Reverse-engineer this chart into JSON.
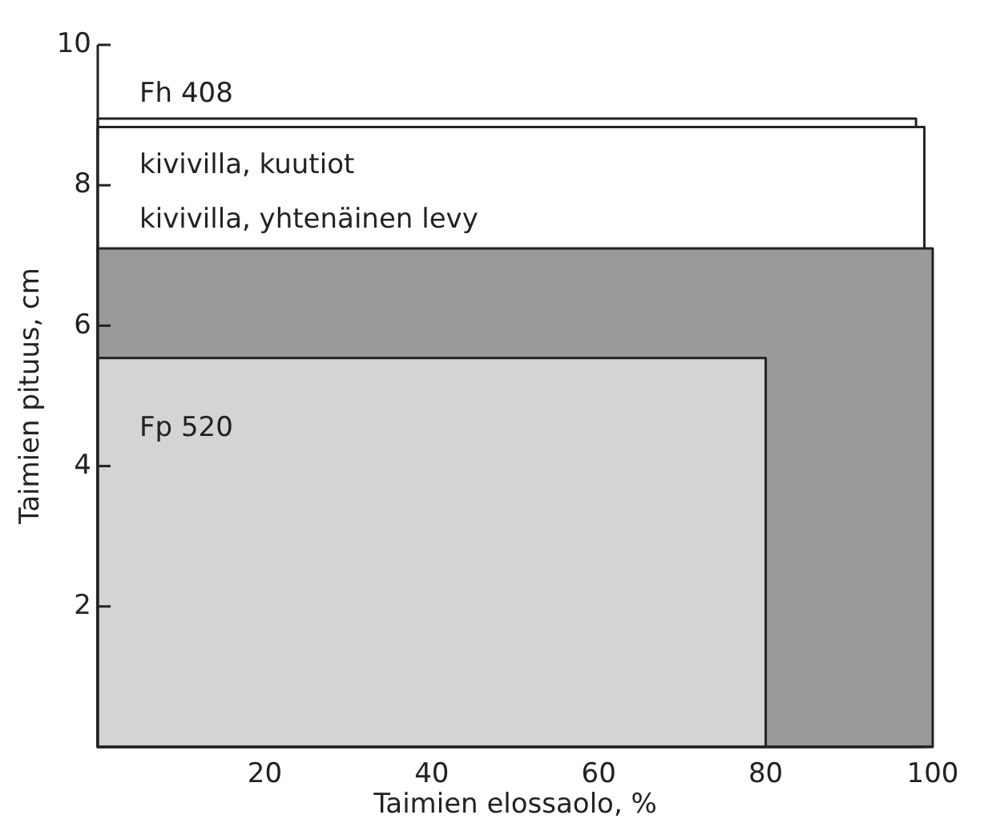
{
  "chart_data": {
    "type": "area",
    "xlabel": "Taimien elossaolo, %",
    "ylabel": "Taimien pituus, cm",
    "xlim": [
      0,
      100
    ],
    "ylim": [
      0,
      10
    ],
    "xticks": [
      20,
      40,
      60,
      80,
      100
    ],
    "yticks": [
      2,
      4,
      6,
      8,
      10
    ],
    "grid": false,
    "series": [
      {
        "name": "Fh 408",
        "color": "#ffffff",
        "x": [
          0,
          98
        ],
        "values": [
          8.95,
          8.95
        ]
      },
      {
        "name": "kivivilla, kuutiot",
        "color": "#ffffff",
        "x": [
          0,
          99
        ],
        "values": [
          8.83,
          8.83
        ]
      },
      {
        "name": "kivivilla, yhtenäinen levy",
        "color": "#9a9a9a",
        "x": [
          0,
          100
        ],
        "values": [
          7.1,
          7.1
        ]
      },
      {
        "name": "Fp 520",
        "color": "#d4d4d4",
        "x": [
          0,
          80
        ],
        "values": [
          5.54,
          5.54
        ]
      }
    ]
  }
}
